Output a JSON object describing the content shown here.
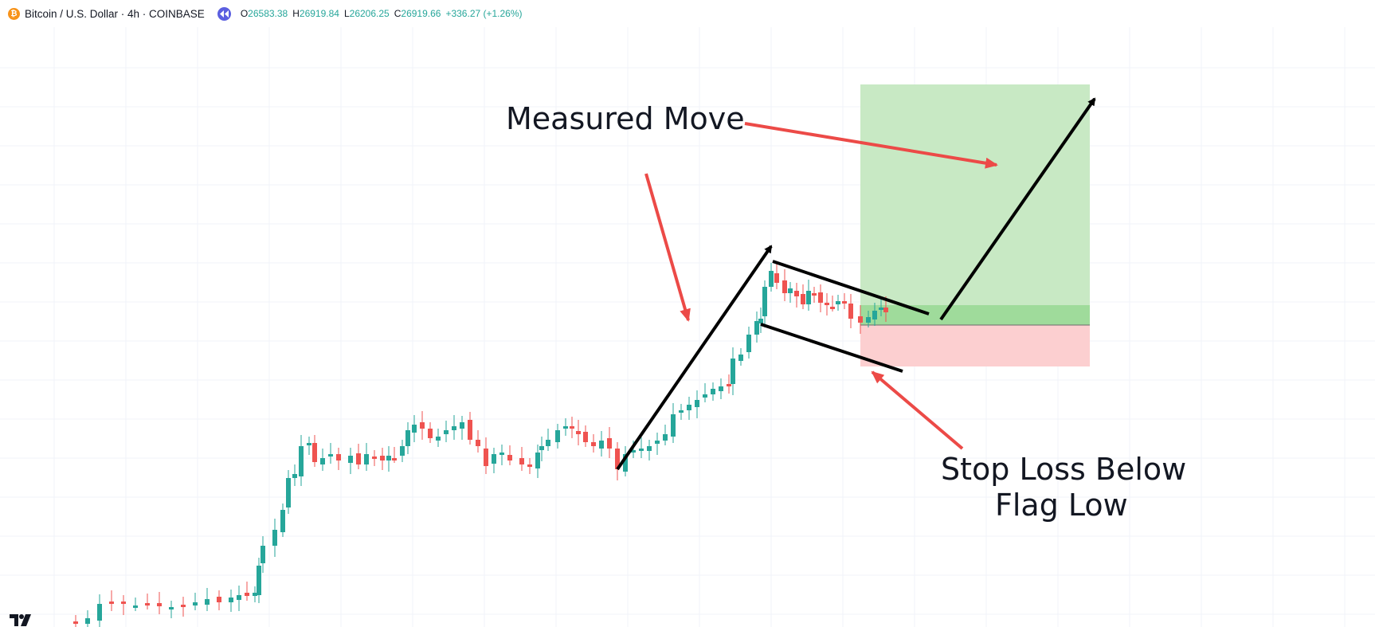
{
  "header": {
    "coin_icon": "bitcoin-icon",
    "symbol_title": "Bitcoin / U.S. Dollar · 4h · COINBASE",
    "replay_icon": "replay-icon",
    "ohlc": {
      "open_label": "O",
      "open": "26583.38",
      "high_label": "H",
      "high": "26919.84",
      "low_label": "L",
      "low": "26206.25",
      "close_label": "C",
      "close": "26919.66",
      "change": "+336.27 (+1.26%)"
    }
  },
  "annotations": {
    "measured_move": "Measured Move",
    "stop_loss_line1": "Stop Loss Below",
    "stop_loss_line2": "Flag Low"
  },
  "colors": {
    "up": "#26a69a",
    "down": "#ef5350",
    "arrow_red": "#ec4a47",
    "profit_zone": "#c8e9c4",
    "entry_zone": "#9fdb9b",
    "loss_zone": "#fccfd0",
    "grid": "#f0f3fa"
  },
  "logo": "tradingview-logo"
}
